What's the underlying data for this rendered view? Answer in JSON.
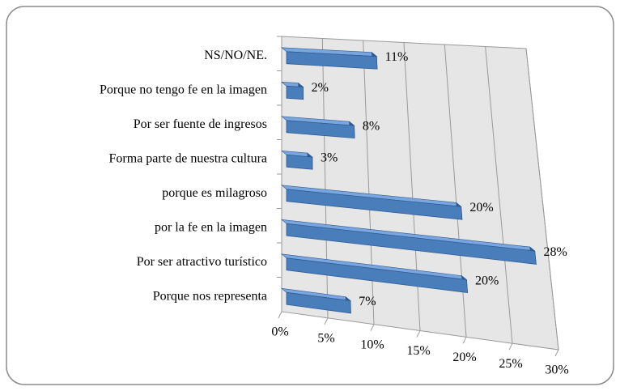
{
  "chart_data": {
    "type": "bar",
    "orientation": "horizontal",
    "categories": [
      "NS/NO/NE.",
      "Porque no tengo fe en la imagen",
      "Por ser fuente de ingresos",
      "Forma parte de nuestra cultura",
      "porque es milagroso",
      "por la fe en la imagen",
      "Por ser atractivo turístico",
      "Porque nos representa"
    ],
    "values": [
      11,
      2,
      8,
      3,
      20,
      28,
      20,
      7
    ],
    "value_labels": [
      "11%",
      "2%",
      "8%",
      "3%",
      "20%",
      "28%",
      "20%",
      "7%"
    ],
    "color": "#4a7ebb",
    "xlim": [
      0,
      30
    ],
    "xticks": [
      {
        "value": 0,
        "label": "0%"
      },
      {
        "value": 5,
        "label": "5%"
      },
      {
        "value": 10,
        "label": "10%"
      },
      {
        "value": 15,
        "label": "15%"
      },
      {
        "value": 20,
        "label": "20%"
      },
      {
        "value": 25,
        "label": "25%"
      },
      {
        "value": 30,
        "label": "30%"
      }
    ],
    "grid": true
  }
}
